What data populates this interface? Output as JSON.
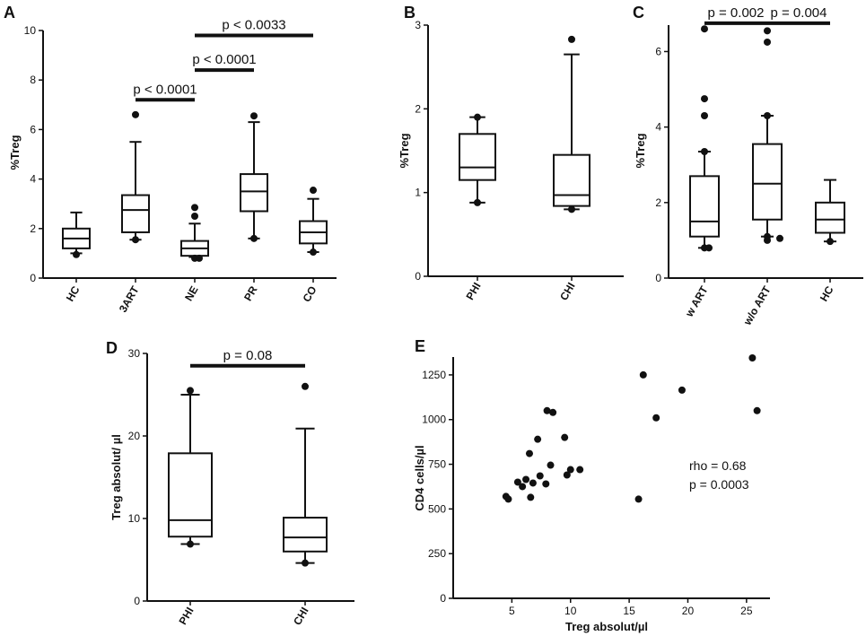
{
  "panels": [
    {
      "id": "A",
      "label": "A",
      "ylabel": "%Treg",
      "ylim": [
        0,
        10
      ],
      "yticks": [
        "0",
        "2",
        "4",
        "6",
        "8",
        "10"
      ],
      "groups": [
        {
          "name": "HC",
          "q1": 1.2,
          "median": 1.6,
          "q3": 2.0,
          "whisker_low": 1.0,
          "whisker_high": 2.65,
          "outliers": [
            0.95
          ]
        },
        {
          "name": "3ART",
          "q1": 1.85,
          "median": 2.75,
          "q3": 3.35,
          "whisker_low": 1.55,
          "whisker_high": 5.5,
          "outliers": [
            6.6,
            1.55
          ]
        },
        {
          "name": "NE",
          "q1": 0.9,
          "median": 1.2,
          "q3": 1.5,
          "whisker_low": 0.85,
          "whisker_high": 2.2,
          "outliers": [
            2.85,
            2.5,
            0.8,
            0.8
          ]
        },
        {
          "name": "PR",
          "q1": 2.7,
          "median": 3.5,
          "q3": 4.2,
          "whisker_low": 1.6,
          "whisker_high": 6.3,
          "outliers": [
            6.55,
            1.6
          ]
        },
        {
          "name": "CO",
          "q1": 1.4,
          "median": 1.85,
          "q3": 2.3,
          "whisker_low": 1.05,
          "whisker_high": 3.2,
          "outliers": [
            3.55,
            1.05
          ]
        }
      ],
      "comparisons": [
        {
          "from": 1,
          "to": 2,
          "y": 7.2,
          "label": "p < 0.0001"
        },
        {
          "from": 2,
          "to": 3,
          "y": 8.4,
          "label": "p < 0.0001"
        },
        {
          "from": 2,
          "to": 4,
          "y": 9.8,
          "label": "p < 0.0033"
        }
      ]
    },
    {
      "id": "B",
      "label": "B",
      "ylabel": "%Treg",
      "ylim": [
        0,
        3
      ],
      "yticks": [
        "0",
        "1",
        "2",
        "3"
      ],
      "groups": [
        {
          "name": "PHI",
          "q1": 1.15,
          "median": 1.3,
          "q3": 1.7,
          "whisker_low": 0.88,
          "whisker_high": 1.9,
          "outliers": [
            1.9,
            0.88
          ]
        },
        {
          "name": "CHI",
          "q1": 0.84,
          "median": 0.97,
          "q3": 1.45,
          "whisker_low": 0.8,
          "whisker_high": 2.65,
          "outliers": [
            2.83,
            0.8
          ]
        }
      ],
      "comparisons": []
    },
    {
      "id": "C",
      "label": "C",
      "ylabel": "%Treg",
      "ylim": [
        0,
        6.7
      ],
      "yticks": [
        "0",
        "2",
        "4",
        "6"
      ],
      "groups": [
        {
          "name": "w ART",
          "q1": 1.1,
          "median": 1.5,
          "q3": 2.7,
          "whisker_low": 0.8,
          "whisker_high": 3.35,
          "outliers": [
            6.6,
            4.75,
            4.3,
            3.35,
            0.8,
            0.8
          ]
        },
        {
          "name": "w/o ART",
          "q1": 1.55,
          "median": 2.5,
          "q3": 3.55,
          "whisker_low": 1.1,
          "whisker_high": 4.3,
          "outliers": [
            6.55,
            6.25,
            4.3,
            1.1,
            1.0,
            1.05
          ]
        },
        {
          "name": "HC",
          "q1": 1.2,
          "median": 1.55,
          "q3": 2.0,
          "whisker_low": 0.97,
          "whisker_high": 2.6,
          "outliers": [
            0.97
          ]
        }
      ],
      "comparisons": [
        {
          "from": 0,
          "to": 1,
          "y": 6.75,
          "label": "p = 0.002"
        },
        {
          "from": 1,
          "to": 2,
          "y": 6.75,
          "label": "p = 0.004"
        }
      ]
    },
    {
      "id": "D",
      "label": "D",
      "ylabel": "Treg absolut/ µl",
      "ylim": [
        0,
        30
      ],
      "yticks": [
        "0",
        "10",
        "20",
        "30"
      ],
      "groups": [
        {
          "name": "PHI",
          "q1": 7.8,
          "median": 9.8,
          "q3": 17.9,
          "whisker_low": 6.9,
          "whisker_high": 25.0,
          "outliers": [
            25.5,
            6.9
          ]
        },
        {
          "name": "CHI",
          "q1": 6.0,
          "median": 7.7,
          "q3": 10.1,
          "whisker_low": 4.6,
          "whisker_high": 20.9,
          "outliers": [
            26.0,
            4.6
          ]
        }
      ],
      "comparisons": [
        {
          "from": 0,
          "to": 1,
          "y": 28.5,
          "label": "p = 0.08"
        }
      ]
    }
  ],
  "scatter": {
    "label": "E",
    "xlabel": "Treg absolut/µl",
    "ylabel": "CD4 cells/µl",
    "xlim": [
      0,
      27
    ],
    "ylim": [
      0,
      1350
    ],
    "xticks": [
      "5",
      "10",
      "15",
      "20",
      "25"
    ],
    "yticks": [
      "0",
      "250",
      "500",
      "750",
      "1000",
      "1250"
    ],
    "points": [
      [
        4.5,
        570
      ],
      [
        4.7,
        555
      ],
      [
        5.5,
        650
      ],
      [
        5.9,
        625
      ],
      [
        6.2,
        665
      ],
      [
        6.5,
        810
      ],
      [
        6.6,
        565
      ],
      [
        6.8,
        645
      ],
      [
        7.2,
        890
      ],
      [
        7.4,
        685
      ],
      [
        7.9,
        640
      ],
      [
        8.0,
        1050
      ],
      [
        8.3,
        745
      ],
      [
        8.5,
        1040
      ],
      [
        9.5,
        900
      ],
      [
        9.7,
        690
      ],
      [
        10.0,
        720
      ],
      [
        10.8,
        720
      ],
      [
        15.8,
        555
      ],
      [
        16.2,
        1250
      ],
      [
        17.3,
        1010
      ],
      [
        19.5,
        1165
      ],
      [
        25.5,
        1345
      ],
      [
        25.9,
        1050
      ]
    ],
    "stats": [
      "rho = 0.68",
      "p = 0.0003"
    ]
  }
}
